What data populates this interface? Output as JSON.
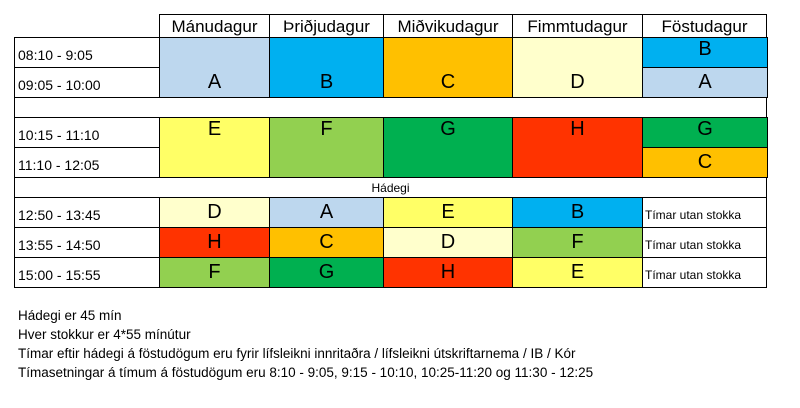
{
  "days": [
    "Mánudagur",
    "Þriðjudagur",
    "Miðvikudagur",
    "Fimmtudagur",
    "Föstudagur"
  ],
  "times": {
    "t1": "08:10 - 9:05",
    "t2": "09:05 - 10:00",
    "t3": "10:15 - 11:10",
    "t4": "11:10 - 12:05",
    "t5": "12:50 - 13:45",
    "t6": "13:55 - 14:50",
    "t7": "15:00 - 15:55"
  },
  "lunch_label": "Hádegi",
  "outside_label": "Tímar utan stokka",
  "colors": {
    "A": "#bdd7ee",
    "B": "#00b0f0",
    "C": "#ffc000",
    "D": "#ffffcc",
    "E": "#ffff66",
    "F": "#92d050",
    "G": "#00b050",
    "H": "#ff3300"
  },
  "cells": [
    {
      "col": 0,
      "row0": 0,
      "row1": 1,
      "letter": "A",
      "align": "bottom"
    },
    {
      "col": 1,
      "row0": 0,
      "row1": 1,
      "letter": "B",
      "align": "bottom"
    },
    {
      "col": 2,
      "row0": 0,
      "row1": 1,
      "letter": "C",
      "align": "bottom"
    },
    {
      "col": 3,
      "row0": 0,
      "row1": 1,
      "letter": "D",
      "align": "bottom"
    },
    {
      "col": 4,
      "row0": 0,
      "row1": 0,
      "letter": "B",
      "align": "top"
    },
    {
      "col": 4,
      "row0": 1,
      "row1": 1,
      "letter": "A",
      "align": "middle"
    },
    {
      "col": 0,
      "row0": 2,
      "row1": 3,
      "letter": "E",
      "align": "top"
    },
    {
      "col": 1,
      "row0": 2,
      "row1": 3,
      "letter": "F",
      "align": "top"
    },
    {
      "col": 2,
      "row0": 2,
      "row1": 3,
      "letter": "G",
      "align": "top"
    },
    {
      "col": 3,
      "row0": 2,
      "row1": 3,
      "letter": "H",
      "align": "top"
    },
    {
      "col": 4,
      "row0": 2,
      "row1": 2,
      "letter": "G",
      "align": "top"
    },
    {
      "col": 4,
      "row0": 3,
      "row1": 3,
      "letter": "C",
      "align": "middle"
    },
    {
      "col": 0,
      "row0": 4,
      "row1": 4,
      "letter": "D",
      "align": "middle"
    },
    {
      "col": 1,
      "row0": 4,
      "row1": 4,
      "letter": "A",
      "align": "middle"
    },
    {
      "col": 2,
      "row0": 4,
      "row1": 4,
      "letter": "E",
      "align": "middle"
    },
    {
      "col": 3,
      "row0": 4,
      "row1": 4,
      "letter": "B",
      "align": "middle"
    },
    {
      "col": 0,
      "row0": 5,
      "row1": 5,
      "letter": "H",
      "align": "middle"
    },
    {
      "col": 1,
      "row0": 5,
      "row1": 5,
      "letter": "C",
      "align": "middle"
    },
    {
      "col": 2,
      "row0": 5,
      "row1": 5,
      "letter": "D",
      "align": "middle"
    },
    {
      "col": 3,
      "row0": 5,
      "row1": 5,
      "letter": "F",
      "align": "middle"
    },
    {
      "col": 0,
      "row0": 6,
      "row1": 6,
      "letter": "F",
      "align": "middle"
    },
    {
      "col": 1,
      "row0": 6,
      "row1": 6,
      "letter": "G",
      "align": "middle"
    },
    {
      "col": 2,
      "row0": 6,
      "row1": 6,
      "letter": "H",
      "align": "middle"
    },
    {
      "col": 3,
      "row0": 6,
      "row1": 6,
      "letter": "E",
      "align": "middle"
    }
  ],
  "notes": [
    "Hádegi er 45 mín",
    "Hver stokkur er 4*55 mínútur",
    "Tímar eftir hádegi á föstudögum eru fyrir lífsleikni innritaðra / lífsleikni útskriftarnema / IB / Kór",
    "Tímasetningar á tímum á föstudögum eru 8:10 - 9:05,  9:15 - 10:10, 10:25-11:20 og 11:30 - 12:25"
  ]
}
